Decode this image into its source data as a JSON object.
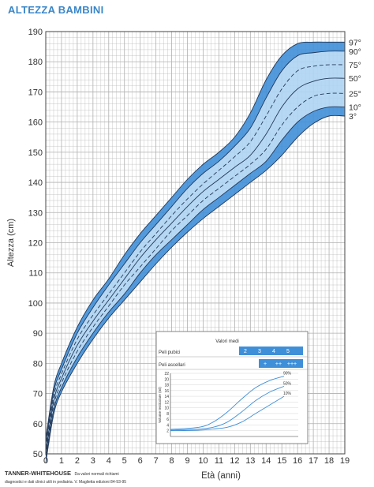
{
  "title": "ALTEZZA BAMBINI",
  "footer": {
    "brand": "TANNER-WHITEHOUSE",
    "note": "Da valori normali richiami",
    "line2": "diagnostici e dati clinici utili in pediatria. V. Maglietta edizioni 84-93-95"
  },
  "colors": {
    "band_dark": "#3f8fd8",
    "band_light": "#aed4f3",
    "grid": "#b0b0b0",
    "title": "#3a86c8"
  },
  "chart_data": [
    {
      "type": "line",
      "title": "",
      "xlabel": "Età (anni)",
      "ylabel": "Altezza (cm)",
      "xlim": [
        0,
        19
      ],
      "ylim": [
        50,
        190
      ],
      "x_ticks": [
        "0",
        "1",
        "2",
        "3",
        "4",
        "5",
        "6",
        "7",
        "8",
        "9",
        "10",
        "11",
        "12",
        "13",
        "14",
        "15",
        "16",
        "17",
        "18",
        "19"
      ],
      "y_ticks": [
        "50",
        "60",
        "70",
        "80",
        "90",
        "100",
        "110",
        "120",
        "130",
        "140",
        "150",
        "160",
        "170",
        "180",
        "190"
      ],
      "grid": true,
      "x": [
        0,
        0.5,
        1,
        2,
        3,
        4,
        5,
        6,
        7,
        8,
        9,
        10,
        11,
        12,
        13,
        14,
        15,
        16,
        17,
        18,
        19
      ],
      "series": [
        {
          "name": "97°",
          "values": [
            55,
            72,
            80,
            92,
            101,
            108,
            116,
            123,
            129,
            135,
            141,
            146,
            150,
            155,
            163,
            174,
            182,
            186,
            186.5,
            186.5,
            186.5
          ]
        },
        {
          "name": "90°",
          "values": [
            53.5,
            70.5,
            78,
            90,
            98.5,
            106,
            113,
            120,
            126,
            132,
            138,
            143,
            147,
            152,
            158,
            168,
            177,
            182,
            183,
            183.5,
            183.5
          ]
        },
        {
          "name": "75°",
          "values": [
            52,
            69,
            76.5,
            88,
            96,
            103,
            110,
            117,
            123,
            129,
            134.5,
            139.5,
            144,
            148.5,
            153.5,
            162,
            171,
            177,
            178.5,
            179,
            179
          ]
        },
        {
          "name": "50°",
          "values": [
            50.5,
            67.5,
            75,
            86,
            94,
            101,
            108,
            115,
            121,
            126.5,
            132,
            137,
            141,
            145,
            149,
            156,
            165,
            171,
            173.5,
            174.5,
            174.5
          ]
        },
        {
          "name": "25°",
          "values": [
            49.5,
            66,
            73.5,
            84,
            92,
            99,
            106,
            112,
            118,
            124,
            129,
            134,
            138,
            142,
            146,
            151,
            159,
            165,
            168.5,
            169.5,
            169.5
          ]
        },
        {
          "name": "10°",
          "values": [
            48.5,
            64.5,
            72,
            82,
            90,
            97,
            103,
            110,
            116,
            121,
            126,
            131,
            135,
            139,
            143,
            147,
            154,
            160,
            163.5,
            165,
            165
          ]
        },
        {
          "name": "3°",
          "values": [
            47,
            63,
            70.5,
            80,
            88,
            95,
            101,
            107,
            113,
            118.5,
            123.5,
            128,
            132,
            136,
            140,
            144,
            149,
            155,
            159.5,
            162,
            162
          ]
        }
      ]
    },
    {
      "type": "line",
      "title": "Valori medi",
      "xlabel": "",
      "ylabel": "Volume testicolare (ml)",
      "xlim": [
        8,
        17
      ],
      "ylim": [
        0,
        22
      ],
      "y_ticks": [
        "2",
        "4",
        "6",
        "8",
        "10",
        "12",
        "14",
        "16",
        "18",
        "20",
        "22"
      ],
      "rows": [
        {
          "label": "Peli pubici",
          "values": [
            "2",
            "3",
            "4",
            "5"
          ]
        },
        {
          "label": "Peli ascellari",
          "values": [
            "+",
            "++",
            "+++"
          ]
        }
      ],
      "x": [
        8,
        10,
        11,
        12,
        13,
        14,
        15,
        16
      ],
      "series": [
        {
          "name": "90%",
          "values": [
            2.5,
            3.2,
            5,
            8.5,
            13,
            17,
            19.5,
            21
          ]
        },
        {
          "name": "50%",
          "values": [
            2.2,
            2.6,
            3.2,
            5,
            8.5,
            12.5,
            15.5,
            17.5
          ]
        },
        {
          "name": "10%",
          "values": [
            2,
            2.2,
            2.6,
            3.2,
            5,
            8,
            11,
            14
          ]
        }
      ]
    }
  ]
}
